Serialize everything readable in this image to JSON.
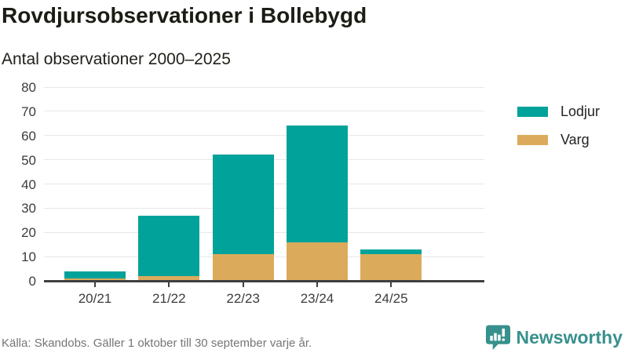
{
  "header": {
    "title": "Rovdjursobservationer i Bollebygd",
    "subtitle": "Antal observationer 2000–2025"
  },
  "chart_data": {
    "type": "bar",
    "stacked": true,
    "categories": [
      "20/21",
      "21/22",
      "22/23",
      "23/24",
      "24/25"
    ],
    "series": [
      {
        "name": "Lodjur",
        "color": "#00A29A",
        "values": [
          3,
          25,
          41,
          48,
          2
        ]
      },
      {
        "name": "Varg",
        "color": "#DBAB5B",
        "values": [
          1,
          2,
          11,
          16,
          11
        ]
      }
    ],
    "stack_bottom_to_top": [
      "Varg",
      "Lodjur"
    ],
    "title": "Rovdjursobservationer i Bollebygd",
    "subtitle": "Antal observationer 2000–2025",
    "xlabel": "",
    "ylabel": "",
    "ylim": [
      0,
      80
    ],
    "ytick_step": 10,
    "yticks": [
      0,
      10,
      20,
      30,
      40,
      50,
      60,
      70,
      80
    ],
    "grid": true,
    "legend_position": "right"
  },
  "legend": {
    "items": [
      {
        "label": "Lodjur",
        "color": "#00A29A"
      },
      {
        "label": "Varg",
        "color": "#DBAB5B"
      }
    ]
  },
  "footer": {
    "source": "Källa: Skandobs. Gäller 1 oktober till 30 september varje år.",
    "brand": "Newsworthy",
    "brand_color": "#38908d"
  },
  "colors": {
    "lodjur": "#00A29A",
    "varg": "#DBAB5B",
    "gridline": "#e7e7e7",
    "axis": "#3f3f42",
    "text_dark": "#1c1c15",
    "text_muted": "#767679"
  }
}
